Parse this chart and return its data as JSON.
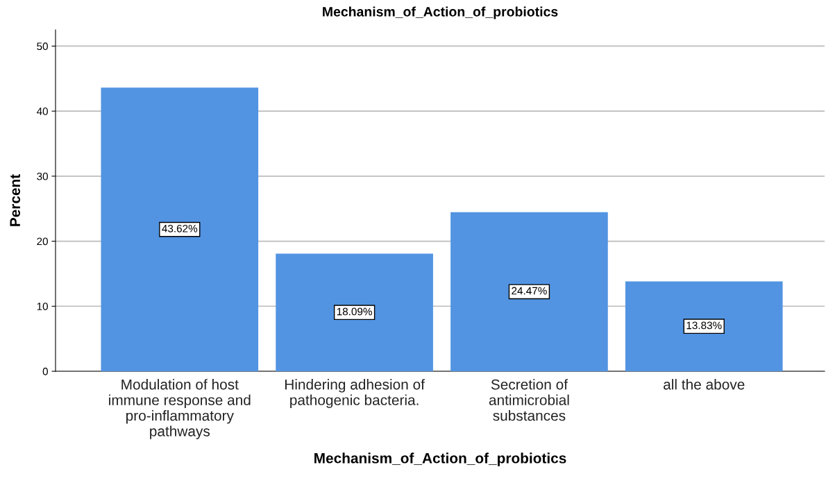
{
  "chart_data": {
    "type": "bar",
    "title": "Mechanism_of_Action_of_probiotics",
    "xlabel": "Mechanism_of_Action_of_probiotics",
    "ylabel": "Percent",
    "categories": [
      "Modulation of host immune response and pro-inflammatory pathways",
      "Hindering adhesion of pathogenic bacteria.",
      "Secretion of antimicrobial substances",
      "all the above"
    ],
    "values": [
      43.62,
      18.09,
      24.47,
      13.83
    ],
    "value_labels": [
      "43.62%",
      "18.09%",
      "24.47%",
      "13.83%"
    ],
    "color": "#5294e2",
    "ylim": [
      0,
      52.5
    ],
    "yticks": [
      0,
      10,
      20,
      30,
      40,
      50
    ],
    "grid": "y",
    "legend": false
  }
}
